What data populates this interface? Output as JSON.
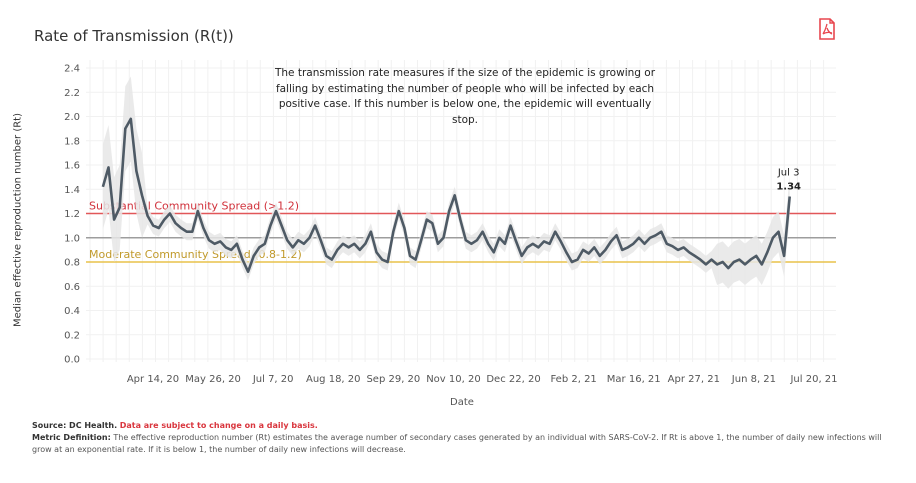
{
  "header": {
    "title": "Rate of Transmission (R(t))",
    "pdf_icon": "pdf-download-icon",
    "pdf_color": "#e8474f"
  },
  "annotation_note": "The transmission rate measures if the size of the epidemic is growing or falling by estimating the number of people who will be infected by each positive case. If this number is below one, the epidemic will eventually stop.",
  "footer": {
    "source_label": "Source: DC Health.",
    "source_warning": "Data are subject to change on a daily basis.",
    "definition_label": "Metric Definition:",
    "definition_text": "The effective reproduction number (Rt) estimates the average number of secondary cases generated by an individual with SARS-CoV-2. If Rt is above 1, the number of daily new infections will grow at an exponential rate. If it is below 1, the number of daily new infections will decrease."
  },
  "chart_data": {
    "type": "line",
    "title": "Rate of Transmission (R(t))",
    "xlabel": "Date",
    "ylabel": "Median effective reproduction number (Rt)",
    "ylim": [
      0.0,
      2.4
    ],
    "yticks": [
      "0.0",
      "0.2",
      "0.4",
      "0.6",
      "0.8",
      "1.0",
      "1.2",
      "1.4",
      "1.6",
      "1.8",
      "2.0",
      "2.2",
      "2.4"
    ],
    "xticks": [
      "Apr 14, 20",
      "May 26, 20",
      "Jul 7, 20",
      "Aug 18, 20",
      "Sep 29, 20",
      "Nov 10, 20",
      "Dec 22, 20",
      "Feb 2, 21",
      "Mar 16, 21",
      "Apr 27, 21",
      "Jun 8, 21",
      "Jul 20, 21"
    ],
    "x_start": "Mar 10, 20",
    "x_end": "Jul 3, 21",
    "step_days": 4,
    "grid": true,
    "colors": {
      "line": "#4e5a65",
      "band": "#e3e3e3",
      "substantial": "#e15759",
      "baseline": "#9d9d9d",
      "moderate": "#e8c24a"
    },
    "reference_lines": [
      {
        "label": "Substantial Community Spread (>1.2)",
        "value": 1.2,
        "color": "#d0303a"
      },
      {
        "label": "",
        "value": 1.0,
        "color": "#9d9d9d"
      },
      {
        "label": "Moderate Community Spread (0.8-1.2)",
        "value": 0.8,
        "color": "#c19a2b"
      }
    ],
    "last_point": {
      "date": "Jul 3",
      "value": "1.34"
    },
    "series": [
      {
        "name": "Median Rt",
        "values": [
          1.42,
          1.58,
          1.15,
          1.25,
          1.9,
          1.98,
          1.55,
          1.35,
          1.18,
          1.1,
          1.08,
          1.15,
          1.2,
          1.12,
          1.08,
          1.05,
          1.05,
          1.22,
          1.08,
          0.98,
          0.95,
          0.97,
          0.92,
          0.9,
          0.95,
          0.82,
          0.72,
          0.85,
          0.92,
          0.95,
          1.1,
          1.22,
          1.1,
          0.98,
          0.92,
          0.98,
          0.95,
          1.0,
          1.1,
          0.98,
          0.85,
          0.82,
          0.9,
          0.95,
          0.92,
          0.95,
          0.9,
          0.95,
          1.05,
          0.88,
          0.82,
          0.8,
          1.05,
          1.22,
          1.08,
          0.85,
          0.82,
          0.98,
          1.15,
          1.12,
          0.95,
          1.0,
          1.22,
          1.35,
          1.15,
          0.98,
          0.95,
          0.98,
          1.05,
          0.95,
          0.88,
          1.0,
          0.95,
          1.1,
          0.97,
          0.85,
          0.92,
          0.95,
          0.92,
          0.97,
          0.95,
          1.05,
          0.97,
          0.88,
          0.8,
          0.82,
          0.9,
          0.87,
          0.92,
          0.85,
          0.9,
          0.97,
          1.02,
          0.9,
          0.92,
          0.95,
          1.0,
          0.95,
          1.0,
          1.02,
          1.05,
          0.95,
          0.93,
          0.9,
          0.92,
          0.88,
          0.85,
          0.82,
          0.78,
          0.82,
          0.78,
          0.8,
          0.75,
          0.8,
          0.82,
          0.78,
          0.82,
          0.85,
          0.78,
          0.88,
          1.0,
          1.05,
          0.85,
          1.34
        ]
      }
    ]
  }
}
